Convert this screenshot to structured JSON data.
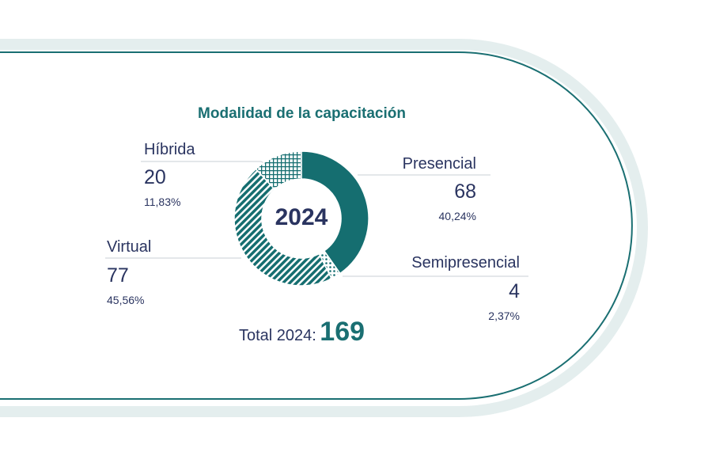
{
  "chart_data": {
    "type": "pie",
    "title": "Modalidad de la capacitación",
    "center_label": "2024",
    "total_label": "Total 2024:",
    "total_value": "169",
    "segments": [
      {
        "label": "Presencial",
        "value": 68,
        "percent": "40,24%",
        "value_text": "68",
        "pattern": "solid",
        "color": "#156e70"
      },
      {
        "label": "Semipresencial",
        "value": 4,
        "percent": "2,37%",
        "value_text": "4",
        "pattern": "dots",
        "color": "#156e70"
      },
      {
        "label": "Virtual",
        "value": 77,
        "percent": "45,56%",
        "value_text": "77",
        "pattern": "diagonal-stripes",
        "color": "#156e70"
      },
      {
        "label": "Híbrida",
        "value": 20,
        "percent": "11,83%",
        "value_text": "20",
        "pattern": "crosshatch",
        "color": "#156e70"
      }
    ]
  },
  "colors": {
    "accent": "#156e70",
    "text": "#2a3460",
    "frame": "#1a6f72",
    "frame_glow": "#e4eeee"
  }
}
